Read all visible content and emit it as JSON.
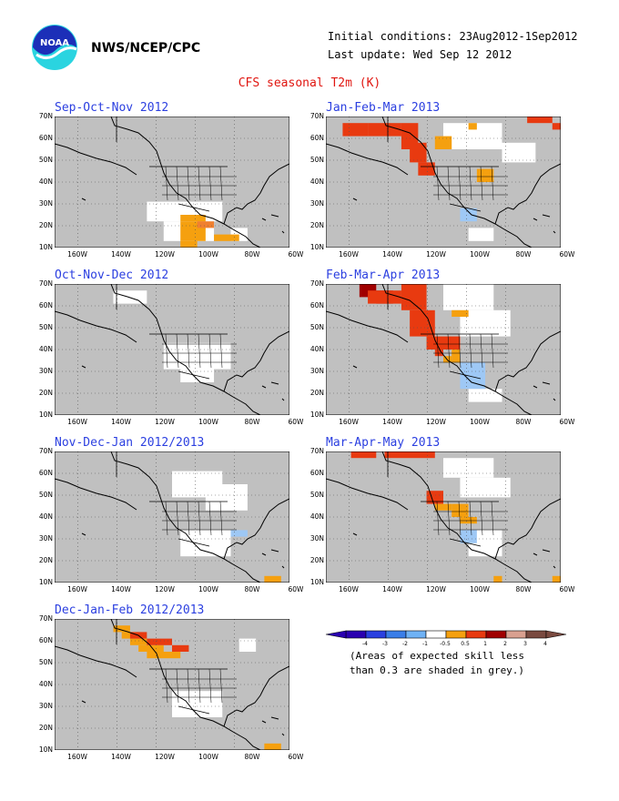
{
  "header": {
    "org": "NWS/NCEP/CPC",
    "initial_conditions": "Initial conditions: 23Aug2012-1Sep2012",
    "last_update": "Last update: Wed Sep 12 2012",
    "title": "CFS seasonal T2m (K)",
    "logo_text": "NOAA"
  },
  "axes": {
    "y_ticks": [
      "70N",
      "60N",
      "50N",
      "40N",
      "30N",
      "20N",
      "10N"
    ],
    "x_ticks": [
      "160W",
      "140W",
      "120W",
      "100W",
      "80W",
      "60W"
    ]
  },
  "panels": [
    {
      "title": "Sep-Oct-Nov 2012",
      "grey": [
        [
          0,
          0.5,
          6,
          9
        ],
        [
          1,
          2.5,
          6,
          10
        ],
        [
          7,
          0,
          12,
          7
        ],
        [
          8,
          5,
          12,
          8
        ],
        [
          14,
          1,
          19,
          6
        ],
        [
          20,
          0,
          28,
          3
        ],
        [
          23,
          3,
          27,
          8
        ],
        [
          3,
          14,
          5,
          16
        ],
        [
          24,
          14,
          26,
          16
        ],
        [
          17,
          13,
          19,
          16
        ]
      ],
      "white": [
        [
          11,
          13,
          20,
          16
        ],
        [
          13,
          16,
          19,
          19
        ],
        [
          21,
          17,
          23,
          19
        ]
      ],
      "anomaly": [
        [
          15,
          15,
          18,
          16,
          "#f5a00f"
        ],
        [
          15,
          16,
          18,
          19,
          "#f5a00f"
        ],
        [
          19,
          18,
          22,
          19,
          "#f5a00f"
        ],
        [
          15,
          19,
          17,
          21,
          "#f5a00f"
        ],
        [
          17,
          16,
          19,
          17,
          "#f08030"
        ]
      ]
    },
    {
      "title": "Jan-Feb-Mar 2013",
      "grey": [
        [
          0,
          0,
          4,
          10
        ],
        [
          1,
          4,
          6,
          10
        ],
        [
          23,
          1,
          28,
          8
        ],
        [
          25,
          6,
          28,
          9
        ],
        [
          2,
          14,
          4,
          16
        ]
      ],
      "white": [
        [
          14,
          1,
          21,
          5
        ],
        [
          21,
          4,
          25,
          7
        ],
        [
          17,
          17,
          20,
          19
        ]
      ],
      "anomaly": [
        [
          2,
          1,
          5,
          3,
          "#e83a10"
        ],
        [
          5,
          1,
          9,
          3,
          "#e83a10"
        ],
        [
          9,
          1,
          11,
          5,
          "#e83a10"
        ],
        [
          10,
          4,
          12,
          7,
          "#e83a10"
        ],
        [
          11,
          7,
          13,
          9,
          "#e83a10"
        ],
        [
          24,
          0,
          27,
          1,
          "#e83a10"
        ],
        [
          27,
          1,
          28,
          2,
          "#e83a10"
        ],
        [
          17,
          1,
          18,
          2,
          "#f5a00f"
        ],
        [
          13,
          3,
          15,
          5,
          "#f5a00f"
        ],
        [
          18,
          8,
          20,
          10,
          "#f5a00f"
        ],
        [
          16,
          14,
          18,
          16,
          "#9ec8f5"
        ]
      ]
    },
    {
      "title": "Oct-Nov-Dec 2012",
      "grey": [
        [
          0,
          0,
          7,
          10
        ],
        [
          2,
          2,
          8,
          6
        ],
        [
          10,
          2,
          16,
          6
        ],
        [
          16,
          0,
          25,
          4
        ],
        [
          23,
          3,
          28,
          8
        ],
        [
          3,
          14,
          5,
          16
        ]
      ],
      "white": [
        [
          7,
          1,
          11,
          3
        ],
        [
          13,
          9,
          21,
          13
        ],
        [
          15,
          12,
          19,
          15
        ]
      ],
      "anomaly": []
    },
    {
      "title": "Feb-Mar-Apr 2013",
      "grey": [
        [
          0,
          0,
          5,
          10
        ],
        [
          1,
          4,
          7,
          10
        ],
        [
          20,
          0,
          28,
          6
        ],
        [
          24,
          5,
          28,
          9
        ],
        [
          2,
          14,
          4,
          16
        ]
      ],
      "white": [
        [
          14,
          0,
          20,
          4
        ],
        [
          16,
          4,
          22,
          8
        ],
        [
          17,
          16,
          21,
          18
        ]
      ],
      "anomaly": [
        [
          4,
          0,
          6,
          2,
          "#a00000"
        ],
        [
          6,
          1,
          8,
          3,
          "#a00000"
        ],
        [
          5,
          1,
          9,
          3,
          "#e83a10"
        ],
        [
          9,
          0,
          12,
          4,
          "#e83a10"
        ],
        [
          10,
          4,
          13,
          8,
          "#e83a10"
        ],
        [
          12,
          8,
          16,
          10,
          "#e83a10"
        ],
        [
          13,
          10,
          14,
          11,
          "#e83a10"
        ],
        [
          14,
          11,
          15,
          12,
          "#f5a00f"
        ],
        [
          15,
          10,
          16,
          12,
          "#f5a00f"
        ],
        [
          15,
          4,
          17,
          5,
          "#f5a00f"
        ],
        [
          16,
          12,
          19,
          16,
          "#9ec8f5"
        ]
      ]
    },
    {
      "title": "Nov-Dec-Jan 2012/2013",
      "grey": [
        [
          0,
          0,
          6,
          9
        ],
        [
          2,
          2,
          7,
          6
        ],
        [
          9,
          1,
          12,
          5
        ],
        [
          15,
          0,
          21,
          3
        ],
        [
          21,
          2,
          28,
          8
        ],
        [
          3,
          14,
          5,
          16
        ]
      ],
      "white": [
        [
          14,
          3,
          20,
          7
        ],
        [
          18,
          5,
          23,
          9
        ],
        [
          15,
          12,
          21,
          16
        ]
      ],
      "anomaly": [
        [
          21,
          12,
          23,
          13,
          "#9ec8f5"
        ],
        [
          25,
          19,
          27,
          20,
          "#f5a00f"
        ]
      ]
    },
    {
      "title": "Mar-Apr-May 2013",
      "grey": [
        [
          0,
          0,
          6,
          10
        ],
        [
          1,
          4,
          7,
          10
        ],
        [
          21,
          0,
          28,
          8
        ],
        [
          3,
          14,
          5,
          16
        ]
      ],
      "white": [
        [
          14,
          1,
          20,
          4
        ],
        [
          16,
          4,
          22,
          7
        ],
        [
          17,
          12,
          21,
          16
        ]
      ],
      "anomaly": [
        [
          3,
          0,
          6,
          1,
          "#e83a10"
        ],
        [
          7,
          0,
          13,
          1,
          "#e83a10"
        ],
        [
          12,
          6,
          14,
          8,
          "#e83a10"
        ],
        [
          13,
          8,
          15,
          9,
          "#f5a00f"
        ],
        [
          15,
          8,
          17,
          10,
          "#f5a00f"
        ],
        [
          16,
          10,
          18,
          11,
          "#f5a00f"
        ],
        [
          16,
          12,
          18,
          14,
          "#9ec8f5"
        ],
        [
          20,
          19,
          21,
          20,
          "#f5a00f"
        ],
        [
          27,
          19,
          28,
          20,
          "#f5a00f"
        ]
      ]
    },
    {
      "title": "Dec-Jan-Feb 2012/2013",
      "grey": [
        [
          0,
          0,
          7,
          10
        ],
        [
          2,
          3,
          8,
          6
        ],
        [
          16,
          0,
          28,
          6
        ],
        [
          23,
          4,
          28,
          8
        ],
        [
          3,
          14,
          5,
          16
        ]
      ],
      "white": [
        [
          22,
          3,
          24,
          5
        ],
        [
          14,
          11,
          20,
          15
        ]
      ],
      "anomaly": [
        [
          7,
          1,
          9,
          2,
          "#f5a00f"
        ],
        [
          8,
          2,
          10,
          3,
          "#f5a00f"
        ],
        [
          9,
          3,
          11,
          4,
          "#f5a00f"
        ],
        [
          10,
          4,
          13,
          5,
          "#f5a00f"
        ],
        [
          11,
          5,
          15,
          6,
          "#f5a00f"
        ],
        [
          9,
          2,
          11,
          3,
          "#e83a10"
        ],
        [
          11,
          3,
          14,
          4,
          "#e83a10"
        ],
        [
          14,
          4,
          16,
          5,
          "#e83a10"
        ],
        [
          25,
          19,
          27,
          20,
          "#f5a00f"
        ]
      ]
    }
  ],
  "legend": {
    "labels": [
      "-4",
      "-3",
      "-2",
      "-1",
      "-0.5",
      "0.5",
      "1",
      "2",
      "3",
      "4"
    ],
    "colors": [
      "#2a00b0",
      "#2a40e0",
      "#3a7ee8",
      "#6fb2f5",
      "#ffffff",
      "#f5a00f",
      "#e83a10",
      "#a00000",
      "#d9a090",
      "#7a4a40"
    ],
    "note_line1": "(Areas of expected skill less",
    "note_line2": "than 0.3 are shaded in grey.)"
  }
}
